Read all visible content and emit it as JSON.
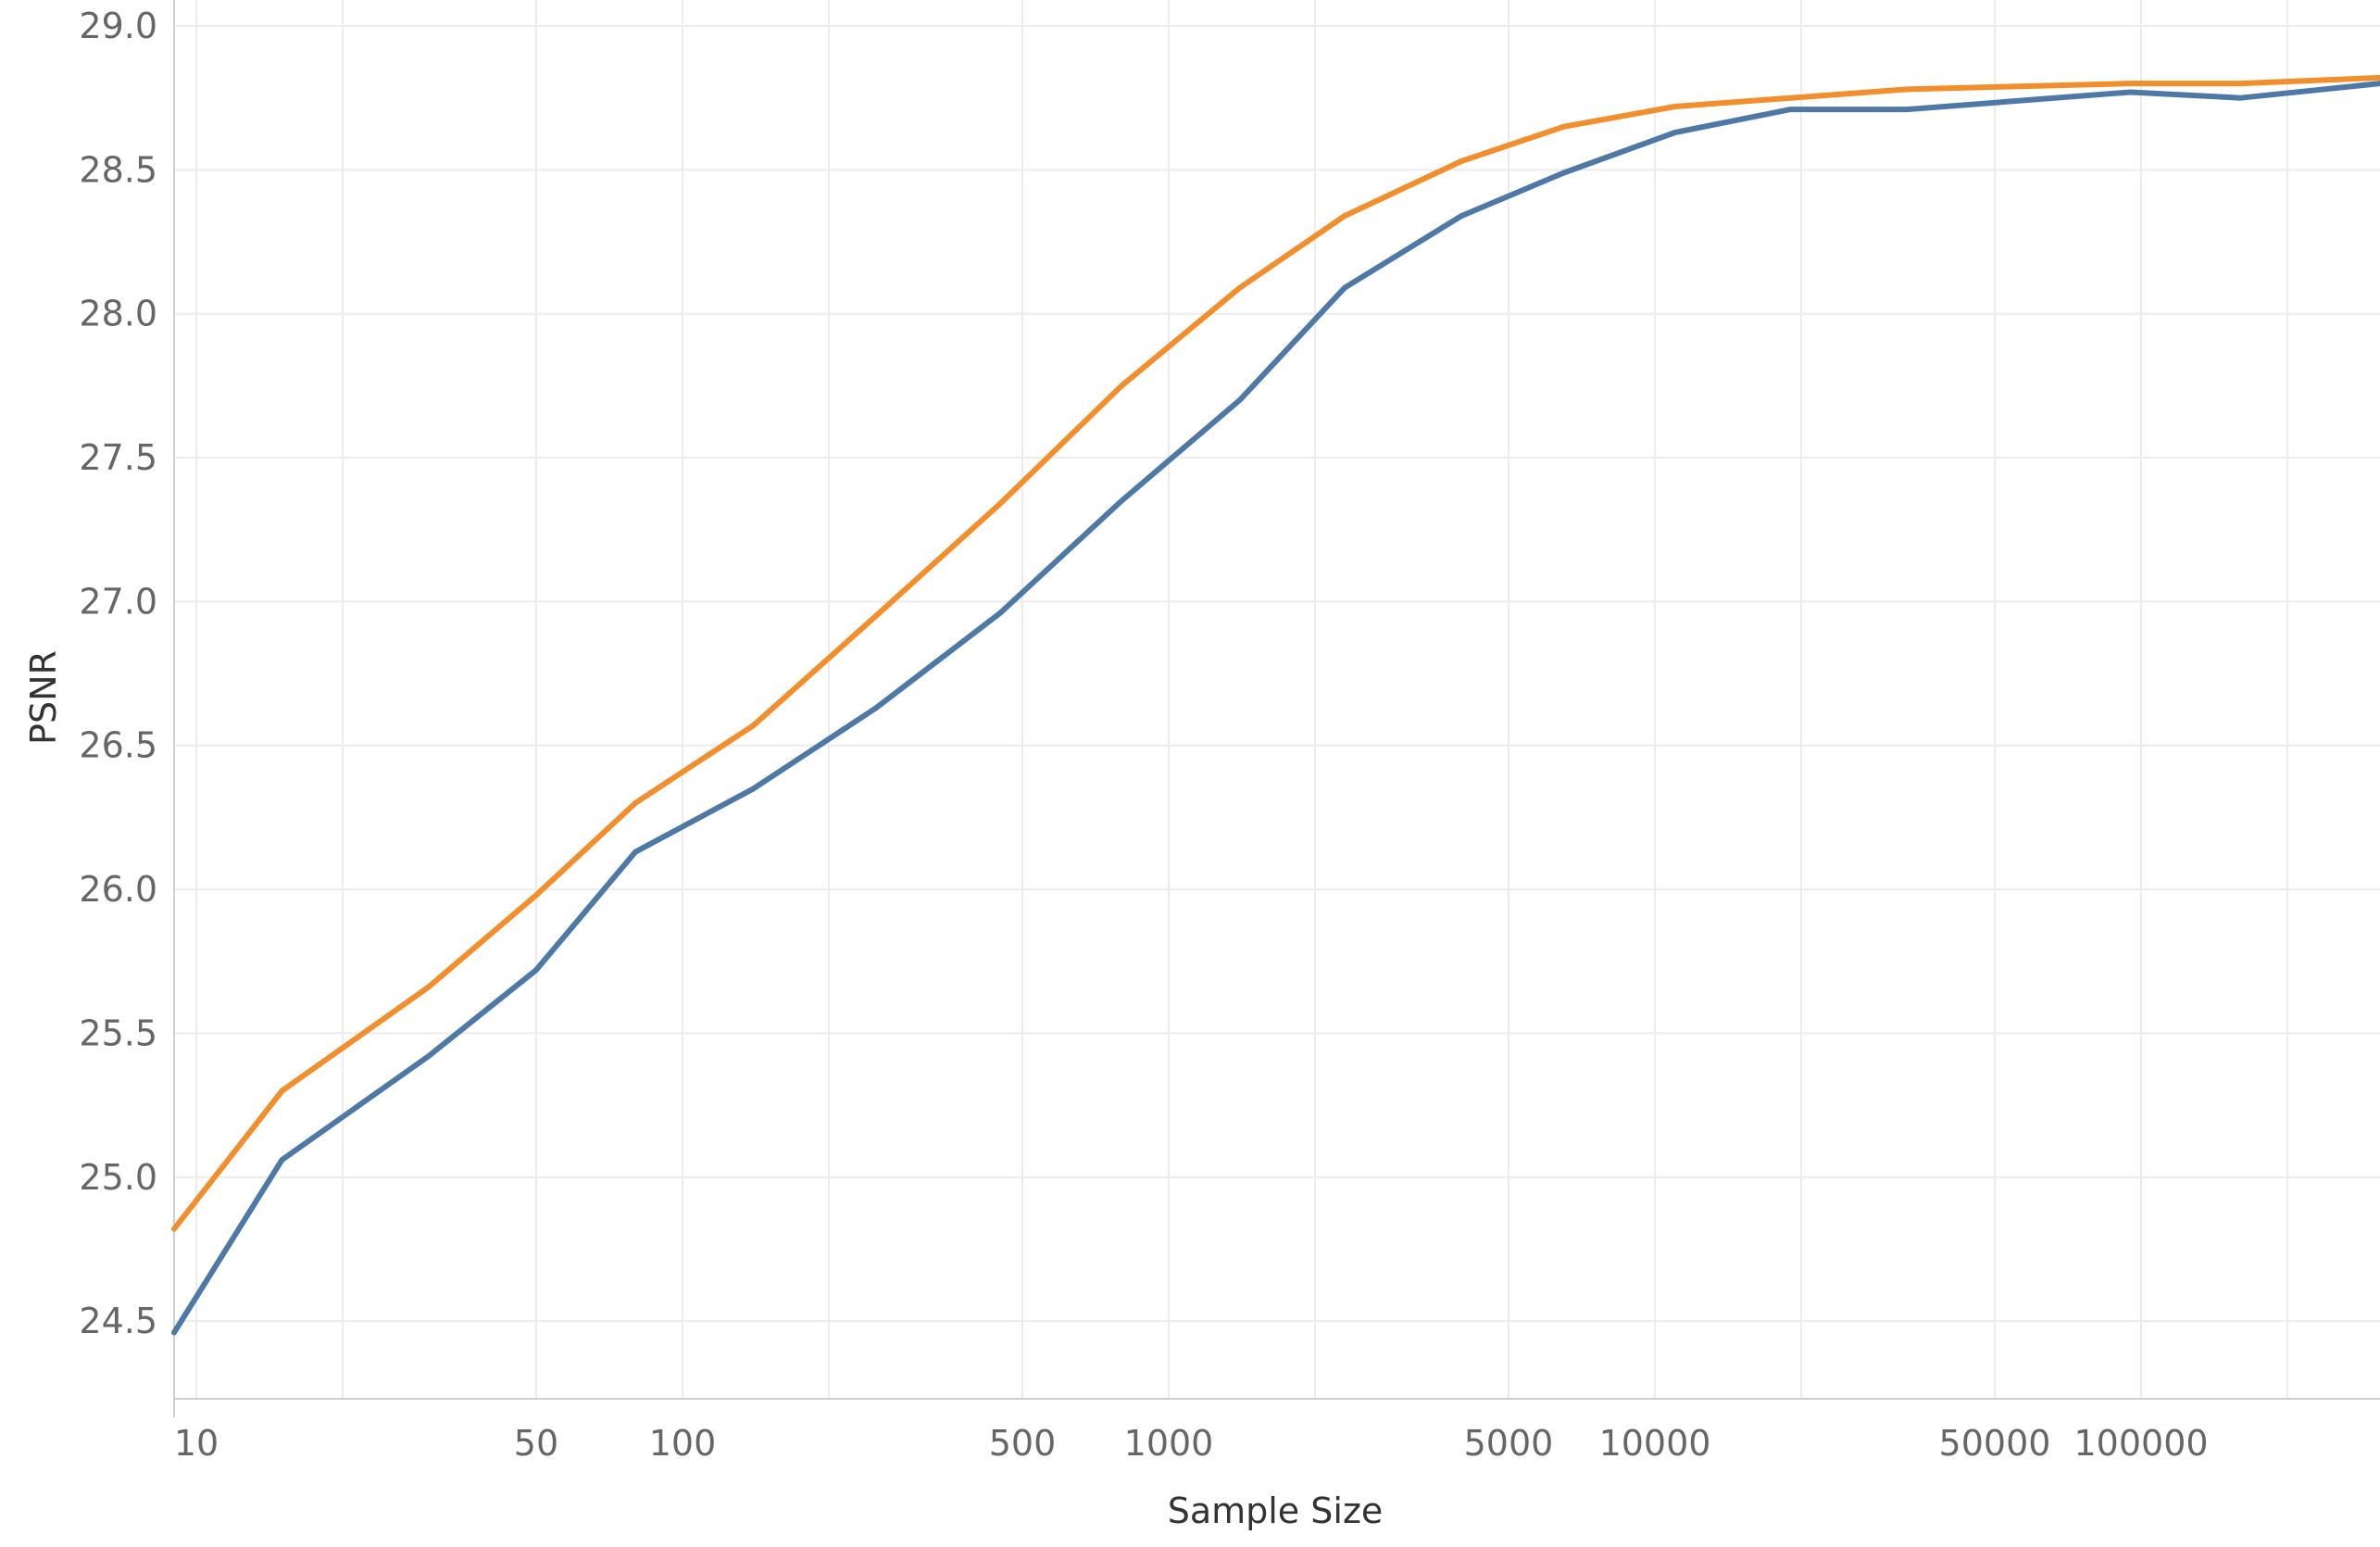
{
  "chart_data": {
    "type": "line",
    "xlabel": "Sample Size",
    "ylabel": "PSNR",
    "xscale": "log",
    "xlim": [
      9,
      310000
    ],
    "ylim": [
      24.23,
      29.0
    ],
    "x_ticks": [
      10,
      50,
      100,
      500,
      1000,
      5000,
      10000,
      50000,
      100000
    ],
    "x_tick_labels": [
      "10",
      "50",
      "100",
      "500",
      "1000",
      "5000",
      "10000",
      "50000",
      "100000"
    ],
    "x_minor_grid": [
      20,
      200,
      2000,
      20000,
      200000
    ],
    "y_ticks": [
      24.5,
      25.0,
      25.5,
      26.0,
      26.5,
      27.0,
      27.5,
      28.0,
      28.5,
      29.0
    ],
    "y_tick_labels": [
      "24.5",
      "25.0",
      "25.5",
      "26.0",
      "26.5",
      "27.0",
      "27.5",
      "28.0",
      "28.5",
      "29.0"
    ],
    "grid": true,
    "legend": "none",
    "series": [
      {
        "color": "#f28e2b",
        "x": [
          9,
          15,
          30,
          50,
          80,
          140,
          250,
          450,
          800,
          1400,
          2300,
          4000,
          6500,
          11000,
          19000,
          33000,
          56000,
          95000,
          160000,
          310000
        ],
        "y": [
          24.82,
          25.3,
          25.66,
          25.98,
          26.3,
          26.57,
          26.95,
          27.34,
          27.75,
          28.09,
          28.34,
          28.53,
          28.65,
          28.72,
          28.75,
          28.78,
          28.79,
          28.8,
          28.8,
          28.82
        ]
      },
      {
        "color": "#4e79a7",
        "x": [
          9,
          15,
          30,
          50,
          80,
          140,
          250,
          450,
          800,
          1400,
          2300,
          4000,
          6500,
          11000,
          19000,
          33000,
          56000,
          95000,
          160000,
          310000
        ],
        "y": [
          24.46,
          25.06,
          25.42,
          25.72,
          26.13,
          26.35,
          26.63,
          26.96,
          27.35,
          27.7,
          28.09,
          28.34,
          28.49,
          28.63,
          28.71,
          28.71,
          28.74,
          28.77,
          28.75,
          28.8
        ]
      }
    ]
  }
}
